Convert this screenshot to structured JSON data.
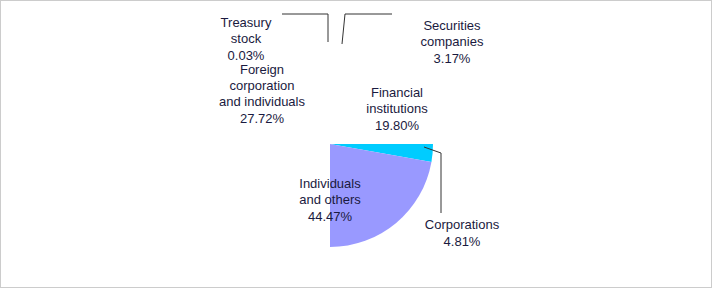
{
  "chart_data": {
    "type": "pie",
    "categories": [
      "Securities companies",
      "Financial institutions",
      "Corporations",
      "Individuals and others",
      "Foreign corporation and individuals",
      "Treasury stock"
    ],
    "values": [
      3.17,
      19.8,
      4.81,
      44.47,
      27.72,
      0.03
    ],
    "value_labels": [
      "3.17%",
      "19.80%",
      "4.81%",
      "44.47%",
      "27.72%",
      "0.03%"
    ],
    "colors": [
      "#ffcc00",
      "#33cc66",
      "#00ccff",
      "#9999ff",
      "#aaaaaa",
      "#ffffff"
    ],
    "data_labels": true
  }
}
